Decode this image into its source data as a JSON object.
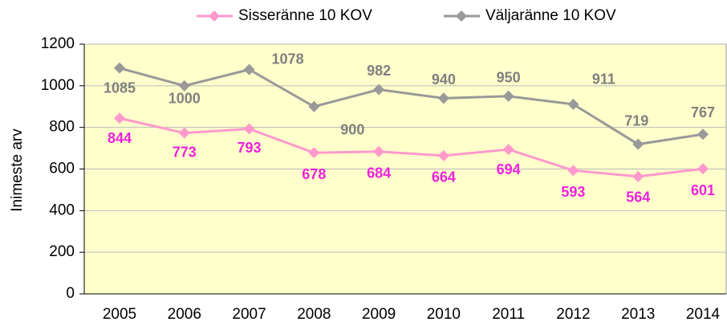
{
  "chart_data": {
    "type": "line",
    "y_label": "Inimeste arv",
    "categories": [
      "2005",
      "2006",
      "2007",
      "2008",
      "2009",
      "2010",
      "2011",
      "2012",
      "2013",
      "2014"
    ],
    "series": [
      {
        "name": "Sisseränne 10 KOV",
        "color": "#ff99cc",
        "label_color": "#ee22dd",
        "values": [
          844,
          773,
          793,
          678,
          684,
          664,
          694,
          593,
          564,
          601
        ]
      },
      {
        "name": "Väljaränne 10 KOV",
        "color": "#999999",
        "label_color": "#808080",
        "values": [
          1085,
          1000,
          1078,
          900,
          982,
          940,
          950,
          911,
          719,
          767
        ]
      }
    ],
    "ylim": [
      0,
      1200
    ],
    "yticks": [
      0,
      200,
      400,
      600,
      800,
      1000,
      1200
    ],
    "grid": true,
    "plot_background": "#ffffcc"
  }
}
